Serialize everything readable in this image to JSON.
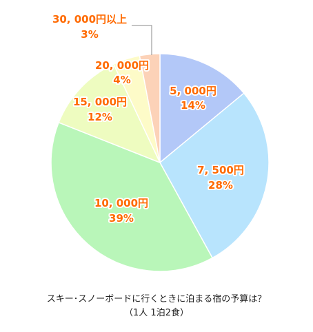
{
  "chart_data": {
    "type": "pie",
    "title": "スキー･スノーボードに行くときに泊まる宿の予算は？",
    "subtitle": "（1人 1泊2食）",
    "slices": [
      {
        "label": "5, 000円",
        "percent_label": "14%",
        "value": 14,
        "color": "#b3c8f8"
      },
      {
        "label": "7, 500円",
        "percent_label": "28%",
        "value": 28,
        "color": "#b8e4fd"
      },
      {
        "label": "10, 000円",
        "percent_label": "39%",
        "value": 39,
        "color": "#b9f6b9"
      },
      {
        "label": "15, 000円",
        "percent_label": "12%",
        "value": 12,
        "color": "#eefcc0"
      },
      {
        "label": "20, 000円",
        "percent_label": "4%",
        "value": 4,
        "color": "#fdfbc8"
      },
      {
        "label": "30, 000円以上",
        "percent_label": "3%",
        "value": 3,
        "color": "#fcd2b8"
      }
    ]
  }
}
